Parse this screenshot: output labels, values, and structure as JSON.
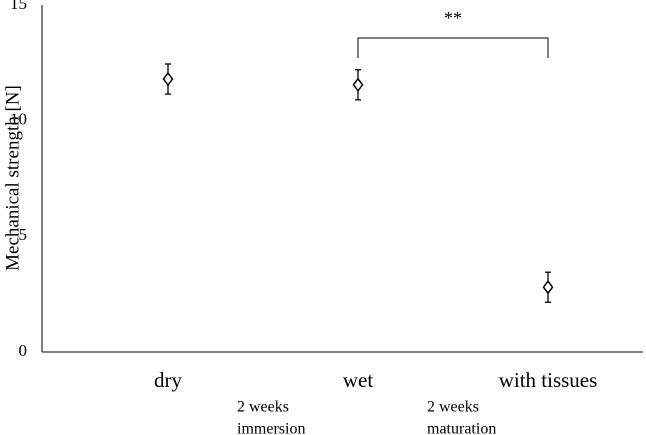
{
  "chart_data": {
    "type": "scatter",
    "y_label": "Mechanical strength [N]",
    "categories": [
      "dry",
      "wet",
      "with tissues"
    ],
    "values": [
      11.8,
      11.55,
      2.8
    ],
    "errors": [
      0.65,
      0.65,
      0.65
    ],
    "color": "#000000",
    "ylim": [
      0,
      15
    ],
    "yticks": [
      0,
      5,
      10,
      15
    ],
    "grid": false,
    "annotations": [
      [
        "2 weeks",
        "immersion"
      ],
      [
        "2 weeks",
        "maturation"
      ]
    ],
    "significance": [
      {
        "label": "**",
        "between": [
          "wet",
          "with tissues"
        ]
      }
    ]
  }
}
